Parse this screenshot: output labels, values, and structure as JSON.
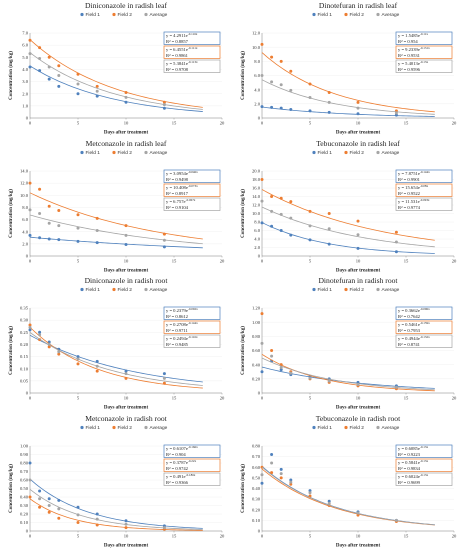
{
  "colors": {
    "field1": "#4f81bd",
    "field2": "#ed7d31",
    "average": "#a5a5a5",
    "axis": "#7f7f7f",
    "grid": "#ececec"
  },
  "chart_data": [
    {
      "type": "scatter",
      "title": "Diniconazole in radish leaf",
      "xlabel": "Days after treatment",
      "ylabel": "Concentration (mg/kg)",
      "xlim": [
        0,
        20
      ],
      "ylim": [
        0,
        7
      ],
      "xticks": [
        0,
        5,
        10,
        15,
        20
      ],
      "yticks": [
        0,
        1,
        2,
        3,
        4,
        5,
        6,
        7
      ],
      "decimals": 1,
      "legend": [
        "Field 1",
        "Field 2",
        "Average"
      ],
      "series": [
        {
          "name": "Field 1",
          "x": [
            0,
            1,
            2,
            3,
            5,
            7,
            10,
            14
          ],
          "y": [
            4.2,
            3.9,
            3.2,
            2.6,
            2.0,
            1.8,
            1.3,
            0.8
          ],
          "fit": {
            "a": 4.2911,
            "b": -0.116
          },
          "eq_base": "y = 4.2911e",
          "eq_exp": "-0.116x",
          "r2": "R² = 0.8857"
        },
        {
          "name": "Field 2",
          "x": [
            0,
            1,
            2,
            3,
            5,
            7,
            10,
            14
          ],
          "y": [
            6.4,
            5.8,
            5.0,
            4.3,
            3.6,
            2.6,
            2.1,
            1.3
          ],
          "fit": {
            "a": 6.4551,
            "b": -0.111
          },
          "eq_base": "y = 6.4551e",
          "eq_exp": "-0.111x",
          "r2": "R² = 0.9861"
        },
        {
          "name": "Average",
          "x": [
            0,
            1,
            2,
            3,
            5,
            7,
            10,
            14
          ],
          "y": [
            5.3,
            4.9,
            4.2,
            3.5,
            2.8,
            2.2,
            1.7,
            1.1
          ],
          "fit": {
            "a": 5.3841,
            "b": -0.113
          },
          "eq_base": "y = 5.3841e",
          "eq_exp": "-0.113x",
          "r2": "R² = 0.9708"
        }
      ]
    },
    {
      "type": "scatter",
      "title": "Dinotefuran in radish leaf",
      "xlabel": "Days after treatment",
      "ylabel": "Concentration (mg/kg)",
      "xlim": [
        0,
        20
      ],
      "ylim": [
        0,
        12
      ],
      "xticks": [
        0,
        5,
        10,
        15,
        20
      ],
      "yticks": [
        0,
        2,
        4,
        6,
        8,
        10,
        12
      ],
      "decimals": 1,
      "legend": [
        "Field 1",
        "Field 2",
        "Average"
      ],
      "series": [
        {
          "name": "Field 1",
          "x": [
            0,
            1,
            2,
            3,
            5,
            7,
            10,
            14
          ],
          "y": [
            1.6,
            1.5,
            1.4,
            1.2,
            1.0,
            0.8,
            0.6,
            0.4
          ],
          "fit": {
            "a": 1.5485,
            "b": -0.11
          },
          "eq_base": "y = 1.5485e",
          "eq_exp": "-0.11x",
          "r2": "R² = 0.954"
        },
        {
          "name": "Field 2",
          "x": [
            0,
            1,
            2,
            3,
            5,
            7,
            10,
            14
          ],
          "y": [
            10.4,
            8.6,
            8.0,
            6.6,
            4.8,
            3.6,
            2.2,
            1.0
          ],
          "fit": {
            "a": 9.2339,
            "b": -0.131
          },
          "eq_base": "y = 9.2339e",
          "eq_exp": "-0.131x",
          "r2": "R² = 0.9531"
        },
        {
          "name": "Average",
          "x": [
            0,
            1,
            2,
            3,
            5,
            7,
            10,
            14
          ],
          "y": [
            6.0,
            5.1,
            4.7,
            3.9,
            2.9,
            2.2,
            1.4,
            0.7
          ],
          "fit": {
            "a": 5.4013,
            "b": -0.13
          },
          "eq_base": "y = 5.4013e",
          "eq_exp": "-0.13x",
          "r2": "R² = 0.9596"
        }
      ]
    },
    {
      "type": "scatter",
      "title": "Metconazole in radish leaf",
      "xlabel": "Days after treatment",
      "ylabel": "Concentration (mg/kg)",
      "xlim": [
        0,
        20
      ],
      "ylim": [
        0,
        14
      ],
      "xticks": [
        0,
        5,
        10,
        15,
        20
      ],
      "yticks": [
        0,
        2,
        4,
        6,
        8,
        10,
        12,
        14
      ],
      "decimals": 1,
      "legend": [
        "Field 1",
        "Field 2",
        "Average"
      ],
      "series": [
        {
          "name": "Field 1",
          "x": [
            0,
            1,
            2,
            3,
            5,
            7,
            10,
            14
          ],
          "y": [
            3.4,
            3.0,
            2.8,
            2.7,
            2.4,
            2.2,
            1.9,
            1.5
          ],
          "fit": {
            "a": 3.0954,
            "b": -0.046
          },
          "eq_base": "y = 3.0954e",
          "eq_exp": "-0.046x",
          "r2": "R² = 0.9498"
        },
        {
          "name": "Field 2",
          "x": [
            0,
            1,
            2,
            3,
            5,
            7,
            10,
            14
          ],
          "y": [
            12.0,
            11.0,
            8.2,
            7.5,
            6.8,
            6.2,
            5.0,
            3.6
          ],
          "fit": {
            "a": 10.408,
            "b": -0.073
          },
          "eq_base": "y = 10.408e",
          "eq_exp": "-0.073x",
          "r2": "R² = 0.8917"
        },
        {
          "name": "Average",
          "x": [
            0,
            1,
            2,
            3,
            5,
            7,
            10,
            14
          ],
          "y": [
            7.6,
            7.0,
            5.4,
            5.0,
            4.6,
            4.2,
            3.4,
            2.6
          ],
          "fit": {
            "a": 6.757,
            "b": -0.067
          },
          "eq_base": "y = 6.757e",
          "eq_exp": "-0.067x",
          "r2": "R² = 0.9104"
        }
      ]
    },
    {
      "type": "scatter",
      "title": "Tebuconazole in radish leaf",
      "xlabel": "Days after treatment",
      "ylabel": "Concentration (mg/kg)",
      "xlim": [
        0,
        20
      ],
      "ylim": [
        0,
        20
      ],
      "xticks": [
        0,
        5,
        10,
        15,
        20
      ],
      "yticks": [
        0,
        2,
        4,
        6,
        8,
        10,
        12,
        14,
        16,
        18,
        20
      ],
      "decimals": 1,
      "legend": [
        "Field 1",
        "Field 2",
        "Average"
      ],
      "series": [
        {
          "name": "Field 1",
          "x": [
            0,
            1,
            2,
            3,
            5,
            7,
            10,
            14
          ],
          "y": [
            7.8,
            7.0,
            6.0,
            4.9,
            3.8,
            2.8,
            1.8,
            1.0
          ],
          "fit": {
            "a": 7.8751,
            "b": -0.144
          },
          "eq_base": "y = 7.8751e",
          "eq_exp": "-0.144x",
          "r2": "R² = 0.9901"
        },
        {
          "name": "Field 2",
          "x": [
            0,
            1,
            2,
            3,
            5,
            7,
            10,
            14
          ],
          "y": [
            18.0,
            14.0,
            13.6,
            12.8,
            10.5,
            10.0,
            8.2,
            5.6
          ],
          "fit": {
            "a": 15.654,
            "b": -0.08
          },
          "eq_base": "y = 15.654e",
          "eq_exp": "-0.08x",
          "r2": "R² = 0.9522"
        },
        {
          "name": "Average",
          "x": [
            0,
            1,
            2,
            3,
            5,
            7,
            10,
            14
          ],
          "y": [
            12.9,
            10.5,
            9.8,
            8.9,
            7.1,
            6.4,
            5.0,
            3.3
          ],
          "fit": {
            "a": 11.531,
            "b": -0.093
          },
          "eq_base": "y = 11.531e",
          "eq_exp": "-0.093x",
          "r2": "R² = 0.9774"
        }
      ]
    },
    {
      "type": "scatter",
      "title": "Diniconazole in radish root",
      "xlabel": "Days after treatment",
      "ylabel": "Concentration (mg/kg)",
      "xlim": [
        0,
        20
      ],
      "ylim": [
        0,
        0.35
      ],
      "xticks": [
        0,
        5,
        10,
        15,
        20
      ],
      "yticks": [
        0,
        0.05,
        0.1,
        0.15,
        0.2,
        0.25,
        0.3,
        0.35
      ],
      "decimals": 2,
      "legend": [
        "Field 1",
        "Field 2",
        "Average"
      ],
      "series": [
        {
          "name": "Field 1",
          "x": [
            0,
            1,
            2,
            3,
            5,
            7,
            10,
            14
          ],
          "y": [
            0.26,
            0.25,
            0.21,
            0.18,
            0.15,
            0.13,
            0.09,
            0.08
          ],
          "fit": {
            "a": 0.2379,
            "b": -0.092
          },
          "eq_base": "y = 0.2379e",
          "eq_exp": "-0.092x",
          "r2": "R² = 0.8612"
        },
        {
          "name": "Field 2",
          "x": [
            0,
            1,
            2,
            3,
            5,
            7,
            10,
            14
          ],
          "y": [
            0.28,
            0.22,
            0.19,
            0.16,
            0.12,
            0.09,
            0.06,
            0.04
          ],
          "fit": {
            "a": 0.2708,
            "b": -0.144
          },
          "eq_base": "y = 0.2708e",
          "eq_exp": "-0.144x",
          "r2": "R² = 0.9711"
        },
        {
          "name": "Average",
          "x": [
            0,
            1,
            2,
            3,
            5,
            7,
            10,
            14
          ],
          "y": [
            0.27,
            0.24,
            0.2,
            0.17,
            0.14,
            0.11,
            0.08,
            0.06
          ],
          "fit": {
            "a": 0.2494,
            "b": -0.116
          },
          "eq_base": "y = 0.2494e",
          "eq_exp": "-0.116x",
          "r2": "R² = 0.9485"
        }
      ]
    },
    {
      "type": "scatter",
      "title": "Dinotefuran in radish root",
      "xlabel": "Days after treatment",
      "ylabel": "Concentration (mg/kg)",
      "xlim": [
        0,
        20
      ],
      "ylim": [
        0,
        1.2
      ],
      "xticks": [
        0,
        5,
        10,
        15,
        20
      ],
      "yticks": [
        0,
        0.2,
        0.4,
        0.6,
        0.8,
        1.0,
        1.2
      ],
      "decimals": 2,
      "legend": [
        "Field 1",
        "Field 2",
        "Average"
      ],
      "series": [
        {
          "name": "Field 1",
          "x": [
            0,
            1,
            2,
            3,
            5,
            7,
            10,
            14
          ],
          "y": [
            0.3,
            0.45,
            0.33,
            0.26,
            0.23,
            0.2,
            0.15,
            0.1
          ],
          "fit": {
            "a": 0.3662,
            "b": -0.096
          },
          "eq_base": "y = 0.3662e",
          "eq_exp": "-0.096x",
          "r2": "R² = 0.7642"
        },
        {
          "name": "Field 2",
          "x": [
            0,
            1,
            2,
            3,
            5,
            7,
            10,
            14
          ],
          "y": [
            1.12,
            0.6,
            0.4,
            0.3,
            0.2,
            0.15,
            0.1,
            0.06
          ],
          "fit": {
            "a": 0.5461,
            "b": -0.159
          },
          "eq_base": "y = 0.5461e",
          "eq_exp": "-0.159x",
          "r2": "R² = 0.7953"
        },
        {
          "name": "Average",
          "x": [
            0,
            1,
            2,
            3,
            5,
            7,
            10,
            14
          ],
          "y": [
            0.7,
            0.52,
            0.36,
            0.28,
            0.21,
            0.17,
            0.12,
            0.08
          ],
          "fit": {
            "a": 0.4944,
            "b": -0.132
          },
          "eq_base": "y = 0.4944e",
          "eq_exp": "-0.132x",
          "r2": "R² = 0.8741"
        }
      ]
    },
    {
      "type": "scatter",
      "title": "Metconazole in radish root",
      "xlabel": "Days after treatment",
      "ylabel": "Concentration (mg/kg)",
      "xlim": [
        0,
        20
      ],
      "ylim": [
        0,
        1.0
      ],
      "xticks": [
        0,
        5,
        10,
        15,
        20
      ],
      "yticks": [
        0,
        0.1,
        0.2,
        0.3,
        0.4,
        0.5,
        0.6,
        0.7,
        0.8,
        0.9,
        1.0
      ],
      "decimals": 2,
      "legend": [
        "Field 1",
        "Field 2",
        "Average"
      ],
      "series": [
        {
          "name": "Field 1",
          "x": [
            0,
            1,
            2,
            3,
            5,
            7,
            10,
            14
          ],
          "y": [
            0.8,
            0.47,
            0.38,
            0.36,
            0.28,
            0.2,
            0.12,
            0.06
          ],
          "fit": {
            "a": 0.6107,
            "b": -0.166
          },
          "eq_base": "y = 0.6107e",
          "eq_exp": "-0.166x",
          "r2": "R² = 0.904"
        },
        {
          "name": "Field 2",
          "x": [
            0,
            1,
            2,
            3,
            5,
            7,
            10,
            14
          ],
          "y": [
            0.4,
            0.28,
            0.22,
            0.15,
            0.1,
            0.07,
            0.04,
            0.02
          ],
          "fit": {
            "a": 0.3787,
            "b": -0.22
          },
          "eq_base": "y = 0.3787e",
          "eq_exp": "-0.22x",
          "r2": "R² = 0.9742"
        },
        {
          "name": "Average",
          "x": [
            0,
            1,
            2,
            3,
            5,
            7,
            10,
            14
          ],
          "y": [
            0.6,
            0.38,
            0.3,
            0.26,
            0.19,
            0.14,
            0.08,
            0.04
          ],
          "fit": {
            "a": 0.491,
            "b": -0.186
          },
          "eq_base": "y = 0.491e",
          "eq_exp": "-0.186x",
          "r2": "R² = 0.9366"
        }
      ]
    },
    {
      "type": "scatter",
      "title": "Tebuconazole in radish root",
      "xlabel": "Days after treatment",
      "ylabel": "Concentration (mg/kg)",
      "xlim": [
        0,
        20
      ],
      "ylim": [
        0,
        0.8
      ],
      "xticks": [
        0,
        5,
        10,
        15,
        20
      ],
      "yticks": [
        0,
        0.1,
        0.2,
        0.3,
        0.4,
        0.5,
        0.6,
        0.7,
        0.8
      ],
      "decimals": 2,
      "legend": [
        "Field 1",
        "Field 2",
        "Average"
      ],
      "series": [
        {
          "name": "Field 1",
          "x": [
            0,
            1,
            2,
            3,
            5,
            7,
            10,
            14
          ],
          "y": [
            0.45,
            0.72,
            0.58,
            0.48,
            0.38,
            0.28,
            0.18,
            0.1
          ],
          "fit": {
            "a": 0.6085,
            "b": -0.13
          },
          "eq_base": "y = 0.6085e",
          "eq_exp": "-0.13x",
          "r2": "R² = 0.9223"
        },
        {
          "name": "Field 2",
          "x": [
            0,
            1,
            2,
            3,
            5,
            7,
            10,
            14
          ],
          "y": [
            0.6,
            0.55,
            0.5,
            0.44,
            0.33,
            0.24,
            0.15,
            0.09
          ],
          "fit": {
            "a": 0.5841,
            "b": -0.13
          },
          "eq_base": "y = 0.5841e",
          "eq_exp": "-0.13x",
          "r2": "R² = 0.9834"
        },
        {
          "name": "Average",
          "x": [
            0,
            1,
            2,
            3,
            5,
            7,
            10,
            14
          ],
          "y": [
            0.53,
            0.64,
            0.54,
            0.46,
            0.36,
            0.26,
            0.17,
            0.1
          ],
          "fit": {
            "a": 0.6024,
            "b": -0.13
          },
          "eq_base": "y = 0.6024e",
          "eq_exp": "-0.13x",
          "r2": "R² = 0.9699"
        }
      ]
    }
  ]
}
